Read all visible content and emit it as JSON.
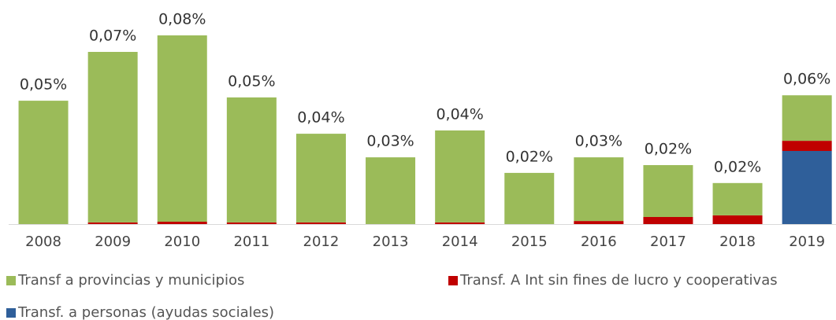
{
  "chart_data": {
    "type": "stacked_bar",
    "categories": [
      "2008",
      "2009",
      "2010",
      "2011",
      "2012",
      "2013",
      "2014",
      "2015",
      "2016",
      "2017",
      "2018",
      "2019"
    ],
    "series": [
      {
        "name": "Transf a provincias y municipios",
        "color": "#9bbb59",
        "values": [
          0.0523,
          0.0723,
          0.079,
          0.053,
          0.0376,
          0.0283,
          0.039,
          0.0217,
          0.027,
          0.022,
          0.0137,
          0.0193
        ]
      },
      {
        "name": "Transf. A Int sin fines de lucro y cooperativas",
        "color": "#c00000",
        "values": [
          0,
          0.0007,
          0.001,
          0.0007,
          0.0007,
          0,
          0.0007,
          0,
          0.0013,
          0.003,
          0.0037,
          0.0043
        ]
      },
      {
        "name": "Transf. a personas (ayudas sociales)",
        "color": "#2f5f9a",
        "values": [
          0,
          0,
          0,
          0,
          0,
          0,
          0,
          0,
          0,
          0,
          0,
          0.031
        ]
      }
    ],
    "total_labels": [
      "0,05%",
      "0,07%",
      "0,08%",
      "0,05%",
      "0,04%",
      "0,03%",
      "0,04%",
      "0,02%",
      "0,03%",
      "0,02%",
      "0,02%",
      "0,06%"
    ],
    "ylim": [
      0,
      0.09
    ],
    "stack_order": [
      2,
      1,
      0
    ]
  }
}
